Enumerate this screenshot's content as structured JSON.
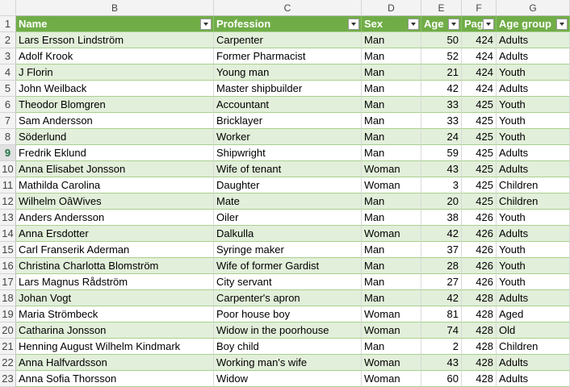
{
  "columns": [
    "B",
    "C",
    "D",
    "E",
    "F",
    "G"
  ],
  "row_numbers": [
    "1",
    "2",
    "3",
    "4",
    "5",
    "6",
    "7",
    "8",
    "9",
    "10",
    "11",
    "12",
    "13",
    "14",
    "15",
    "16",
    "17",
    "18",
    "19",
    "20",
    "21",
    "22",
    "23"
  ],
  "selected_row": "9",
  "header": [
    "Name",
    "Profession",
    "Sex",
    "Age",
    "Page",
    "Age group"
  ],
  "rows": [
    [
      "Lars Ersson Lindström",
      "Carpenter",
      "Man",
      "50",
      "424",
      "Adults"
    ],
    [
      "Adolf Krook",
      "Former Pharmacist",
      "Man",
      "52",
      "424",
      "Adults"
    ],
    [
      "J Florin",
      "Young man",
      "Man",
      "21",
      "424",
      "Youth"
    ],
    [
      "John Weilback",
      "Master shipbuilder",
      "Man",
      "42",
      "424",
      "Adults"
    ],
    [
      "Theodor Blomgren",
      "Accountant",
      "Man",
      "33",
      "425",
      "Youth"
    ],
    [
      "Sam Andersson",
      "Bricklayer",
      "Man",
      "33",
      "425",
      "Youth"
    ],
    [
      "Söderlund",
      "Worker",
      "Man",
      "24",
      "425",
      "Youth"
    ],
    [
      "Fredrik Eklund",
      "Shipwright",
      "Man",
      "59",
      "425",
      "Adults"
    ],
    [
      "Anna Elisabet Jonsson",
      "Wife of tenant",
      "Woman",
      "43",
      "425",
      "Adults"
    ],
    [
      "Mathilda Carolina",
      "Daughter",
      "Woman",
      "3",
      "425",
      "Children"
    ],
    [
      "Wilhelm OâWives",
      "Mate",
      "Man",
      "20",
      "425",
      "Children"
    ],
    [
      "Anders Andersson",
      "Oiler",
      "Man",
      "38",
      "426",
      "Youth"
    ],
    [
      "Anna Ersdotter",
      "Dalkulla",
      "Woman",
      "42",
      "426",
      "Adults"
    ],
    [
      "Carl Franserik Aderman",
      "Syringe maker",
      "Man",
      "37",
      "426",
      "Youth"
    ],
    [
      "Christina Charlotta Blomström",
      "Wife of former Gardist",
      "Man",
      "28",
      "426",
      "Youth"
    ],
    [
      "Lars Magnus Rådström",
      "City servant",
      "Man",
      "27",
      "426",
      "Youth"
    ],
    [
      "Johan Vogt",
      "Carpenter's apron",
      "Man",
      "42",
      "428",
      "Adults"
    ],
    [
      "Maria Strömbeck",
      "Poor house boy",
      "Woman",
      "81",
      "428",
      "Aged"
    ],
    [
      "Catharina Jonsson",
      "Widow in the poorhouse",
      "Woman",
      "74",
      "428",
      "Old"
    ],
    [
      "Henning August Wilhelm Kindmark",
      "Boy child",
      "Man",
      "2",
      "428",
      "Children"
    ],
    [
      "Anna Halfvardsson",
      "Working man's wife",
      "Woman",
      "43",
      "428",
      "Adults"
    ],
    [
      "Anna Sofia Thorsson",
      "Widow",
      "Woman",
      "60",
      "428",
      "Adults"
    ]
  ]
}
